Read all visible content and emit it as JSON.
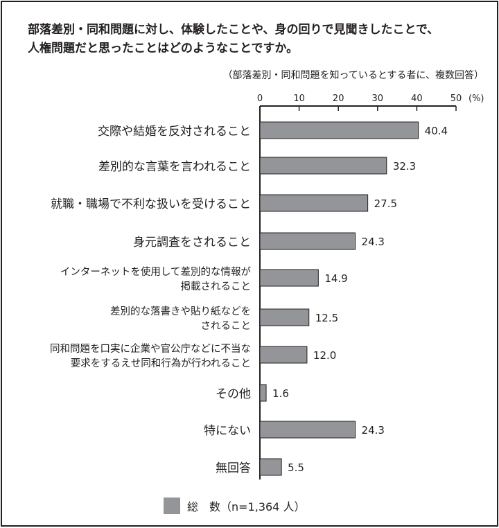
{
  "chart_data": {
    "type": "bar",
    "orientation": "horizontal",
    "title_lines": [
      "部落差別・同和問題に対し、体験したことや、身の回りで見聞きしたことで、",
      "人権問題だと思ったことはどのようなことですか。"
    ],
    "subtitle": "（部落差別・同和問題を知っているとする者に、複数回答）",
    "xlabel": "(%)",
    "xlim": [
      0,
      50
    ],
    "xticks": [
      "0",
      "10",
      "20",
      "30",
      "40",
      "50"
    ],
    "categories": [
      [
        "交際や結婚を反対されること"
      ],
      [
        "差別的な言葉を言われること"
      ],
      [
        "就職・職場で不利な扱いを受けること"
      ],
      [
        "身元調査をされること"
      ],
      [
        "インターネットを使用して差別的な情報が",
        "掲載されること"
      ],
      [
        "差別的な落書きや貼り紙などを",
        "されること"
      ],
      [
        "同和問題を口実に企業や官公庁などに不当な",
        "要求をするえせ同和行為が行われること"
      ],
      [
        "その他"
      ],
      [
        "特にない"
      ],
      [
        "無回答"
      ]
    ],
    "series": [
      {
        "name": "総　数（n=1,364 人）",
        "values": [
          40.4,
          32.3,
          27.5,
          24.3,
          14.9,
          12.5,
          12.0,
          1.6,
          24.3,
          5.5
        ],
        "labels": [
          "40.4",
          "32.3",
          "27.5",
          "24.3",
          "14.9",
          "12.5",
          "12.0",
          "1.6",
          "24.3",
          "5.5"
        ]
      }
    ],
    "legend_position": "bottom",
    "bar_color": "#939598"
  }
}
